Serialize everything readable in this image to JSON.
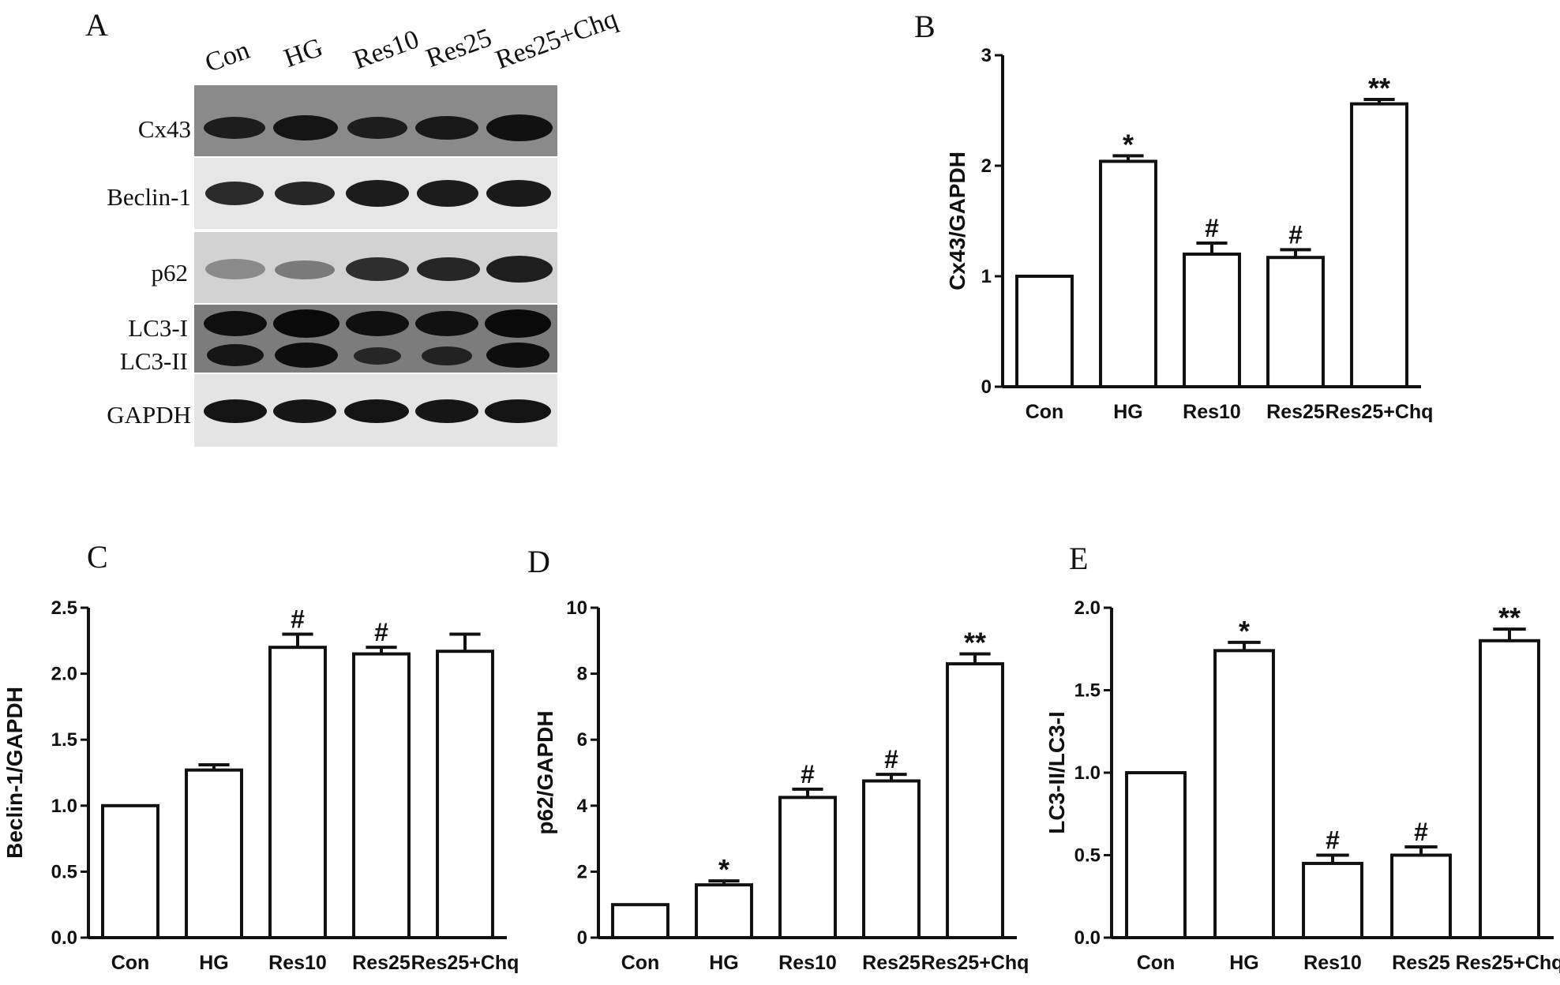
{
  "panels": {
    "A": "A",
    "B": "B",
    "C": "C",
    "D": "D",
    "E": "E"
  },
  "western_blot": {
    "lanes": [
      "Con",
      "HG",
      "Res10",
      "Res25",
      "Res25+Chq"
    ],
    "proteins": [
      "Cx43",
      "Beclin-1",
      "p62",
      "LC3-I",
      "LC3-II",
      "GAPDH"
    ]
  },
  "colors": {
    "bar_fill": "#ffffff",
    "bar_stroke": "#111111",
    "text": "#111111"
  },
  "chart_data": [
    {
      "id": "B",
      "type": "bar",
      "categories": [
        "Con",
        "HG",
        "Res10",
        "Res25",
        "Res25+Chq"
      ],
      "values": [
        1.0,
        2.04,
        1.2,
        1.17,
        2.56
      ],
      "errors": [
        0.0,
        0.05,
        0.1,
        0.07,
        0.04
      ],
      "annotations": [
        "",
        "*",
        "#",
        "#",
        "**"
      ],
      "ylabel": "Cx43/GAPDH",
      "ylim": [
        0,
        3
      ],
      "yticks": [
        0,
        1,
        2,
        3
      ],
      "ytick_labels": [
        "0",
        "1",
        "2",
        "3"
      ]
    },
    {
      "id": "C",
      "type": "bar",
      "categories": [
        "Con",
        "HG",
        "Res10",
        "Res25",
        "Res25+Chq"
      ],
      "values": [
        1.0,
        1.27,
        2.2,
        2.15,
        2.17
      ],
      "errors": [
        0.0,
        0.04,
        0.1,
        0.05,
        0.13
      ],
      "annotations": [
        "",
        "",
        "#",
        "#",
        ""
      ],
      "ylabel": "Beclin-1/GAPDH",
      "ylim": [
        0,
        2.5
      ],
      "yticks": [
        0,
        0.5,
        1.0,
        1.5,
        2.0,
        2.5
      ],
      "ytick_labels": [
        "0.0",
        "0.5",
        "1.0",
        "1.5",
        "2.0",
        "2.5"
      ]
    },
    {
      "id": "D",
      "type": "bar",
      "categories": [
        "Con",
        "HG",
        "Res10",
        "Res25",
        "Res25+Chq"
      ],
      "values": [
        1.0,
        1.6,
        4.25,
        4.75,
        8.3
      ],
      "errors": [
        0.0,
        0.12,
        0.25,
        0.2,
        0.3
      ],
      "annotations": [
        "",
        "*",
        "#",
        "#",
        "**"
      ],
      "ylabel": "p62/GAPDH",
      "ylim": [
        0,
        10
      ],
      "yticks": [
        0,
        2,
        4,
        6,
        8,
        10
      ],
      "ytick_labels": [
        "0",
        "2",
        "4",
        "6",
        "8",
        "10"
      ]
    },
    {
      "id": "E",
      "type": "bar",
      "categories": [
        "Con",
        "HG",
        "Res10",
        "Res25",
        "Res25+Chq"
      ],
      "values": [
        1.0,
        1.74,
        0.45,
        0.5,
        1.8
      ],
      "errors": [
        0.0,
        0.05,
        0.05,
        0.05,
        0.07
      ],
      "annotations": [
        "",
        "*",
        "#",
        "#",
        "**"
      ],
      "ylabel": "LC3-II/LC3-I",
      "ylim": [
        0,
        2.0
      ],
      "yticks": [
        0,
        0.5,
        1.0,
        1.5,
        2.0
      ],
      "ytick_labels": [
        "0.0",
        "0.5",
        "1.0",
        "1.5",
        "2.0"
      ]
    }
  ]
}
